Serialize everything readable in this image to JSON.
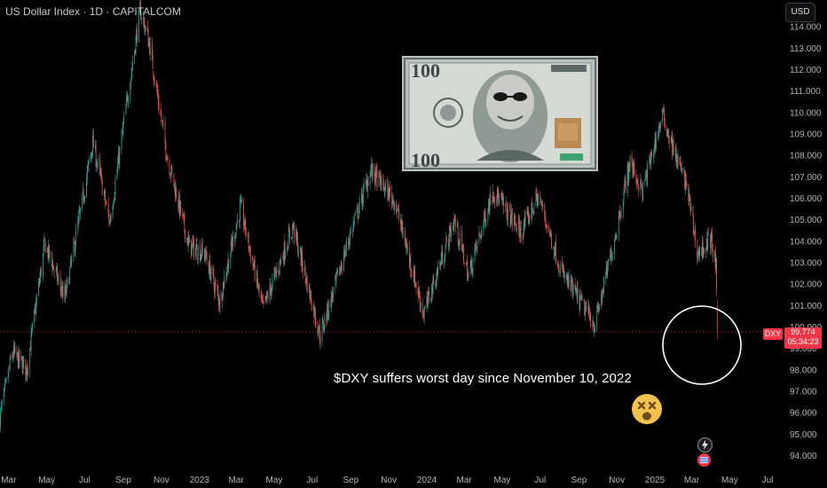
{
  "header": {
    "title": "US Dollar Index · 1D · CAPITALCOM",
    "currency": "USD"
  },
  "price_marker": {
    "symbol": "DXY",
    "price": "99.774",
    "countdown": "05:34:23"
  },
  "annotation": {
    "text": "$DXY suffers worst day since November 10, 2022",
    "emoji": "dizzy-face-icon"
  },
  "colors": {
    "up": "#26a69a",
    "down": "#ef5350",
    "background": "#000000",
    "accent": "#f23645"
  },
  "chart_data": {
    "type": "candlestick",
    "ylim": [
      93.4,
      115.0
    ],
    "yticks": [
      "94.000",
      "95.000",
      "96.000",
      "97.000",
      "98.000",
      "99.000",
      "100.000",
      "101.000",
      "102.000",
      "103.000",
      "104.000",
      "105.000",
      "106.000",
      "107.000",
      "108.000",
      "109.000",
      "110.000",
      "111.000",
      "112.000",
      "113.000",
      "114.000"
    ],
    "xticks": [
      "Mar",
      "May",
      "Jul",
      "Sep",
      "Nov",
      "2023",
      "Mar",
      "May",
      "Jul",
      "Sep",
      "Nov",
      "2024",
      "Mar",
      "May",
      "Jul",
      "Sep",
      "Nov",
      "2025",
      "Mar",
      "May",
      "Jul"
    ],
    "x_range": [
      "2022-02-15",
      "2025-07-25"
    ],
    "xtick_dates": [
      "2022-03-01",
      "2022-05-01",
      "2022-07-01",
      "2022-09-01",
      "2022-11-01",
      "2023-01-01",
      "2023-03-01",
      "2023-05-01",
      "2023-07-01",
      "2023-09-01",
      "2023-11-01",
      "2024-01-01",
      "2024-03-01",
      "2024-05-01",
      "2024-07-01",
      "2024-09-01",
      "2024-11-01",
      "2025-01-01",
      "2025-03-01",
      "2025-05-01",
      "2025-07-01"
    ],
    "trend": [
      [
        "2022-02-15",
        95.8
      ],
      [
        "2022-03-07",
        98.8
      ],
      [
        "2022-03-30",
        98.0
      ],
      [
        "2022-04-28",
        103.9
      ],
      [
        "2022-05-30",
        101.3
      ],
      [
        "2022-07-14",
        108.6
      ],
      [
        "2022-08-10",
        104.9
      ],
      [
        "2022-09-28",
        114.8
      ],
      [
        "2022-10-12",
        113.3
      ],
      [
        "2022-11-10",
        108.0
      ],
      [
        "2022-12-15",
        103.8
      ],
      [
        "2023-01-10",
        103.4
      ],
      [
        "2023-02-02",
        101.2
      ],
      [
        "2023-03-08",
        105.6
      ],
      [
        "2023-04-13",
        100.8
      ],
      [
        "2023-05-31",
        104.7
      ],
      [
        "2023-07-14",
        99.6
      ],
      [
        "2023-09-01",
        104.4
      ],
      [
        "2023-10-03",
        107.3
      ],
      [
        "2023-11-10",
        105.9
      ],
      [
        "2023-12-27",
        100.6
      ],
      [
        "2024-02-14",
        105.0
      ],
      [
        "2024-03-08",
        102.4
      ],
      [
        "2024-04-16",
        106.4
      ],
      [
        "2024-05-31",
        104.4
      ],
      [
        "2024-06-28",
        106.1
      ],
      [
        "2024-08-05",
        102.5
      ],
      [
        "2024-09-27",
        100.1
      ],
      [
        "2024-10-31",
        104.5
      ],
      [
        "2024-11-22",
        107.7
      ],
      [
        "2024-12-12",
        106.3
      ],
      [
        "2025-01-13",
        109.9
      ],
      [
        "2025-02-03",
        108.0
      ],
      [
        "2025-02-21",
        106.6
      ],
      [
        "2025-03-11",
        103.4
      ],
      [
        "2025-04-01",
        104.1
      ],
      [
        "2025-04-09",
        102.8
      ],
      [
        "2025-04-11",
        99.77
      ]
    ]
  }
}
